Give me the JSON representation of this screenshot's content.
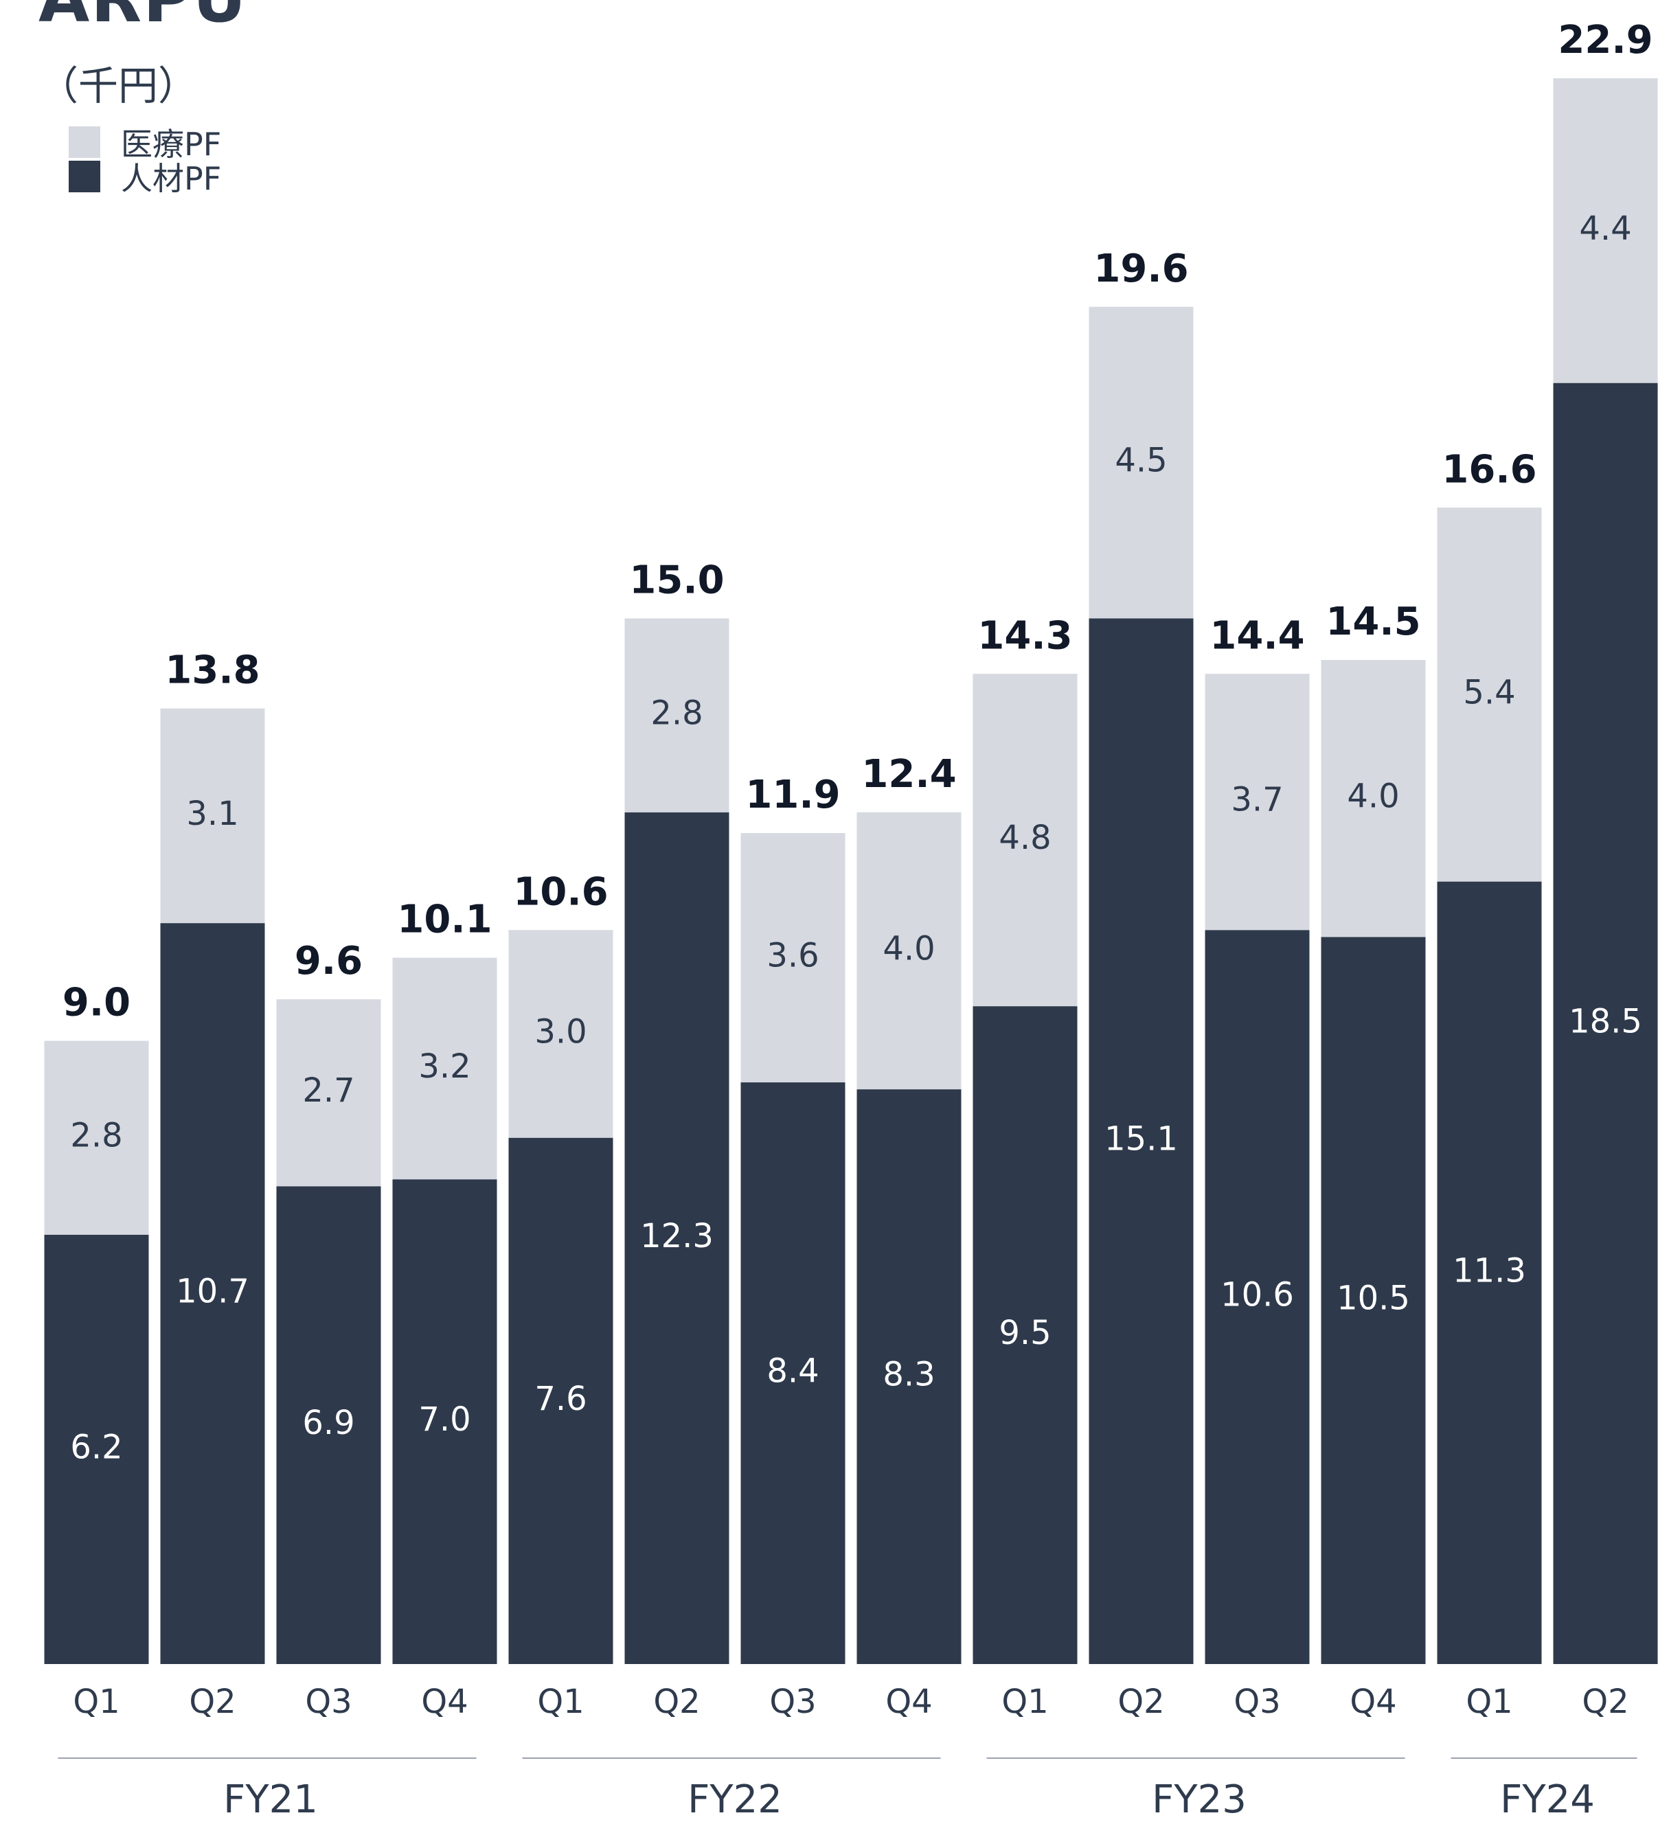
{
  "title": "ARPU",
  "title_superscript": "※",
  "unit_label": "（千円）",
  "colors": {
    "medical_pf": "#d6d9e0",
    "hr_pf": "#2e3a4b",
    "axis_text": "#2f3b4d",
    "inner_label_dark": "#2f3b4d",
    "inner_label_light": "#ffffff",
    "group_line": "#9ca3af"
  },
  "legend": [
    {
      "label": "医療PF",
      "color_key": "medical_pf"
    },
    {
      "label": "人材PF",
      "color_key": "hr_pf"
    }
  ],
  "chart_data": {
    "type": "bar",
    "stacked": true,
    "categories": [
      "Q1",
      "Q2",
      "Q3",
      "Q4",
      "Q1",
      "Q2",
      "Q3",
      "Q4",
      "Q1",
      "Q2",
      "Q3",
      "Q4",
      "Q1",
      "Q2"
    ],
    "groups": [
      {
        "label": "FY21",
        "count": 4
      },
      {
        "label": "FY22",
        "count": 4
      },
      {
        "label": "FY23",
        "count": 4
      },
      {
        "label": "FY24",
        "count": 2
      }
    ],
    "series": [
      {
        "name": "人材PF",
        "values": [
          6.2,
          10.7,
          6.9,
          7.0,
          7.6,
          12.3,
          8.4,
          8.3,
          9.5,
          15.1,
          10.6,
          10.5,
          11.3,
          18.5
        ]
      },
      {
        "name": "医療PF",
        "values": [
          2.8,
          3.1,
          2.7,
          3.2,
          3.0,
          2.8,
          3.6,
          4.0,
          4.8,
          4.5,
          3.7,
          4.0,
          5.4,
          4.4
        ]
      }
    ],
    "totals": [
      9.0,
      13.8,
      9.6,
      10.1,
      10.6,
      15.0,
      11.9,
      12.4,
      14.3,
      19.6,
      14.4,
      14.5,
      16.6,
      22.9
    ],
    "value_labels": {
      "hr": [
        "6.2",
        "10.7",
        "6.9",
        "7.0",
        "7.6",
        "12.3",
        "8.4",
        "8.3",
        "9.5",
        "15.1",
        "10.6",
        "10.5",
        "11.3",
        "18.5"
      ],
      "medical": [
        "2.8",
        "3.1",
        "2.7",
        "3.2",
        "3.0",
        "2.8",
        "3.6",
        "4.0",
        "4.8",
        "4.5",
        "3.7",
        "4.0",
        "5.4",
        "4.4"
      ],
      "totals": [
        "9.0",
        "13.8",
        "9.6",
        "10.1",
        "10.6",
        "15.0",
        "11.9",
        "12.4",
        "14.3",
        "19.6",
        "14.4",
        "14.5",
        "16.6",
        "22.9"
      ]
    },
    "ylim": [
      0,
      22.9
    ],
    "grid": false,
    "legend_position": "top-left"
  }
}
